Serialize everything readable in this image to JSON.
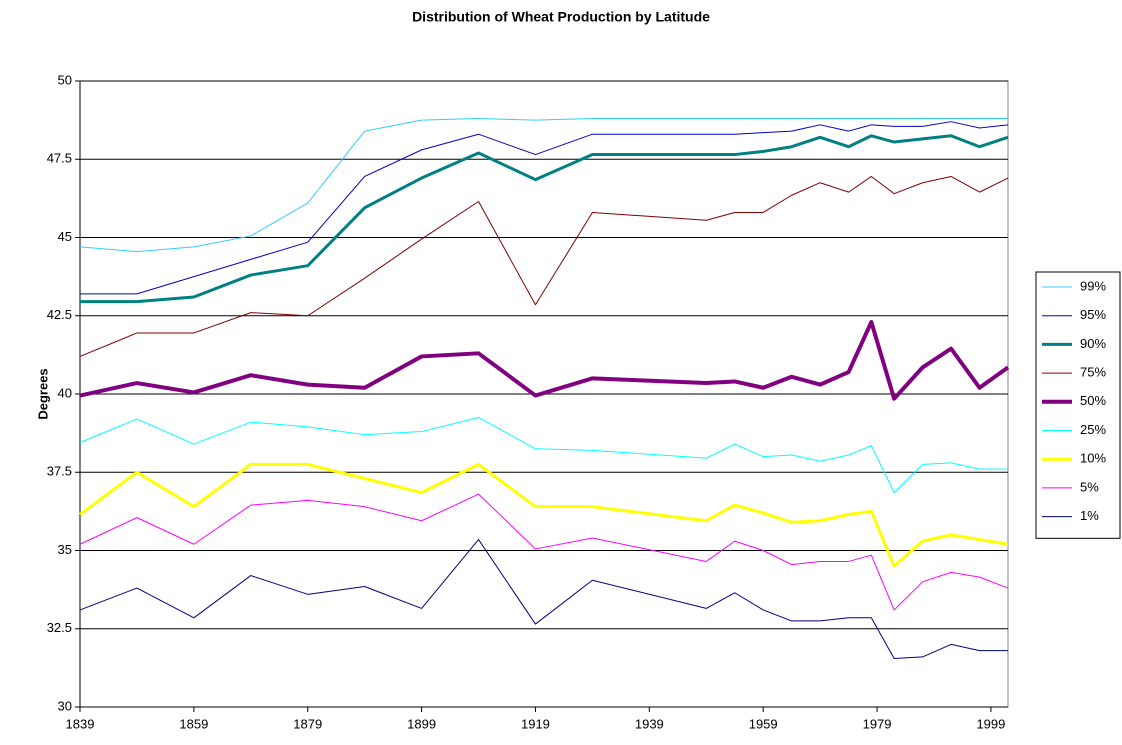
{
  "chart_data": {
    "type": "line",
    "title": "Distribution of Wheat Production by Latitude",
    "y_label": "Degrees",
    "x": [
      1839,
      1849,
      1859,
      1869,
      1879,
      1889,
      1899,
      1909,
      1919,
      1929,
      1949,
      1954,
      1959,
      1964,
      1969,
      1974,
      1978,
      1982,
      1987,
      1992,
      1997,
      2002
    ],
    "xlim": [
      1839,
      2002
    ],
    "xticks": [
      1839,
      1859,
      1879,
      1899,
      1919,
      1939,
      1959,
      1979,
      1999
    ],
    "ylim": [
      30,
      50
    ],
    "yticks": [
      30,
      32.5,
      35,
      37.5,
      40,
      42.5,
      45,
      47.5,
      50
    ],
    "grid": true,
    "legend": "right",
    "series": [
      {
        "name": "99%",
        "color": "#33ccff",
        "width": 1,
        "values": [
          44.7,
          44.55,
          44.7,
          45.05,
          46.1,
          48.4,
          48.75,
          48.8,
          48.75,
          48.8,
          48.8,
          48.8,
          48.8,
          48.8,
          48.8,
          48.8,
          48.8,
          48.8,
          48.8,
          48.8,
          48.8,
          48.8
        ]
      },
      {
        "name": "95%",
        "color": "#0000cc",
        "width": 1,
        "values": [
          43.2,
          43.2,
          43.75,
          44.3,
          44.85,
          46.95,
          47.8,
          48.3,
          47.65,
          48.3,
          48.3,
          48.3,
          48.35,
          48.4,
          48.6,
          48.4,
          48.6,
          48.55,
          48.55,
          48.7,
          48.5,
          48.6
        ]
      },
      {
        "name": "90%",
        "color": "#008080",
        "width": 3,
        "values": [
          42.95,
          42.95,
          43.1,
          43.8,
          44.1,
          45.95,
          46.9,
          47.7,
          46.85,
          47.65,
          47.65,
          47.65,
          47.75,
          47.9,
          48.2,
          47.9,
          48.25,
          48.05,
          48.15,
          48.25,
          47.9,
          48.2
        ]
      },
      {
        "name": "75%",
        "color": "#800000",
        "width": 1,
        "values": [
          41.2,
          41.95,
          41.95,
          42.6,
          42.5,
          43.7,
          44.95,
          46.15,
          42.85,
          45.8,
          45.55,
          45.8,
          45.8,
          46.35,
          46.75,
          46.45,
          46.95,
          46.4,
          46.75,
          46.95,
          46.45,
          46.9
        ]
      },
      {
        "name": "50%",
        "color": "#800080",
        "width": 4,
        "values": [
          39.95,
          40.35,
          40.05,
          40.6,
          40.3,
          40.2,
          41.2,
          41.3,
          39.95,
          40.5,
          40.35,
          40.4,
          40.2,
          40.55,
          40.3,
          40.7,
          42.3,
          39.85,
          40.85,
          41.45,
          40.2,
          40.85
        ]
      },
      {
        "name": "25%",
        "color": "#00ffff",
        "width": 1,
        "values": [
          38.45,
          39.2,
          38.4,
          39.1,
          38.95,
          38.7,
          38.8,
          39.25,
          38.25,
          38.2,
          37.95,
          38.4,
          38.0,
          38.05,
          37.85,
          38.05,
          38.35,
          36.85,
          37.75,
          37.8,
          37.6,
          37.6
        ]
      },
      {
        "name": "10%",
        "color": "#ffff00",
        "width": 3,
        "values": [
          36.15,
          37.5,
          36.4,
          37.75,
          37.75,
          37.3,
          36.85,
          37.75,
          36.4,
          36.4,
          35.95,
          36.45,
          36.2,
          35.9,
          35.95,
          36.15,
          36.25,
          34.5,
          35.3,
          35.5,
          35.35,
          35.2
        ]
      },
      {
        "name": "5%",
        "color": "#ff00ff",
        "width": 1,
        "values": [
          35.2,
          36.05,
          35.2,
          36.45,
          36.6,
          36.4,
          35.95,
          36.8,
          35.05,
          35.4,
          34.65,
          35.3,
          35.0,
          34.55,
          34.65,
          34.65,
          34.85,
          33.1,
          34.0,
          34.3,
          34.15,
          33.8
        ]
      },
      {
        "name": "1%",
        "color": "#000080",
        "width": 1,
        "values": [
          33.1,
          33.8,
          32.85,
          34.2,
          33.6,
          33.85,
          33.15,
          35.35,
          32.65,
          34.05,
          33.15,
          33.65,
          33.1,
          32.75,
          32.75,
          32.85,
          32.85,
          31.55,
          31.6,
          32.0,
          31.8,
          31.8
        ]
      }
    ]
  }
}
